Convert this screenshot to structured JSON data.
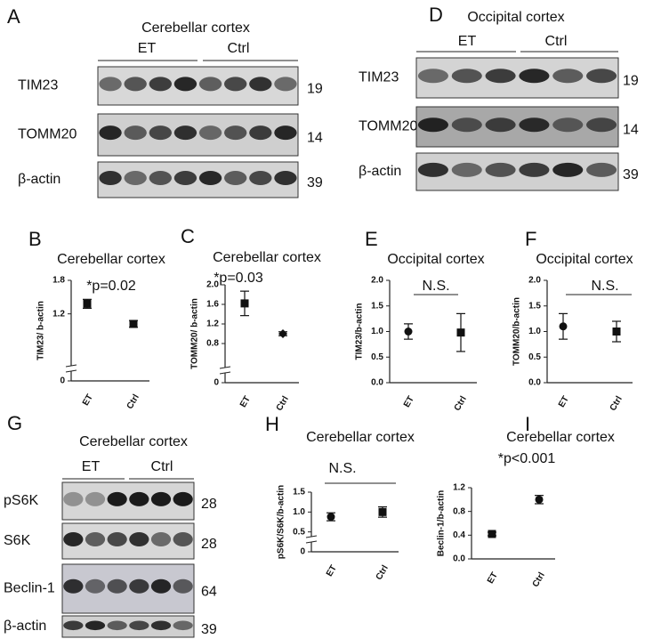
{
  "blots": [
    {
      "panel": "A",
      "title": "Cerebellar cortex",
      "groups": [
        "ET",
        "Ctrl"
      ],
      "rows": [
        {
          "name": "TIM23",
          "size": 19
        },
        {
          "name": "TOMM20",
          "size": 14
        },
        {
          "name": "β-actin",
          "size": 39
        }
      ]
    },
    {
      "panel": "D",
      "title": "Occipital cortex",
      "groups": [
        "ET",
        "Ctrl"
      ],
      "rows": [
        {
          "name": "TIM23",
          "size": 19
        },
        {
          "name": "TOMM20",
          "size": 14
        },
        {
          "name": "β-actin",
          "size": 39
        }
      ]
    },
    {
      "panel": "G",
      "title": "Cerebellar cortex",
      "groups": [
        "ET",
        "Ctrl"
      ],
      "rows": [
        {
          "name": "pS6K",
          "size": 28
        },
        {
          "name": "S6K",
          "size": 28
        },
        {
          "name": "Beclin-1",
          "size": 64
        },
        {
          "name": "β-actin",
          "size": 39
        }
      ]
    }
  ],
  "chart_data": [
    {
      "type": "dot",
      "panel": "B",
      "title": "Cerebellar cortex",
      "annotation": "*p=0.02",
      "ylabel": "TIM23/ b-actin",
      "categories": [
        "ET",
        "Ctrl"
      ],
      "values": [
        1.38,
        1.02
      ],
      "errors": [
        0.08,
        0.06
      ],
      "markers": [
        "square",
        "square"
      ],
      "ylim": [
        0,
        1.8
      ],
      "yticks": [
        0,
        1.2,
        1.8
      ],
      "axis_break": true
    },
    {
      "type": "dot",
      "panel": "C",
      "title": "Cerebellar cortex",
      "annotation": "*p=0.03",
      "ylabel": "TOMM20/ b-actin",
      "categories": [
        "ET",
        "Ctrl"
      ],
      "values": [
        1.62,
        1.0
      ],
      "errors": [
        0.25,
        0.04
      ],
      "markers": [
        "square",
        "diamond"
      ],
      "ylim": [
        0,
        2
      ],
      "yticks": [
        0,
        0.8,
        1.2,
        1.6,
        {
          "value": 2,
          "label": "2.0"
        }
      ],
      "axis_break": true
    },
    {
      "type": "dot",
      "panel": "E",
      "title": "Occipital cortex",
      "annotation": "N.S.",
      "ylabel": "TIM23/b-actin",
      "categories": [
        "ET",
        "Ctrl"
      ],
      "values": [
        1.0,
        0.98
      ],
      "errors": [
        0.15,
        0.37
      ],
      "markers": [
        "circle",
        "square"
      ],
      "ylim": [
        0,
        2
      ],
      "yticks": [
        {
          "value": 0,
          "label": "0.0"
        },
        0.5,
        {
          "value": 1,
          "label": "1.0"
        },
        1.5,
        {
          "value": 2,
          "label": "2.0"
        }
      ],
      "axis_break": false
    },
    {
      "type": "dot",
      "panel": "F",
      "title": "Occipital cortex",
      "annotation": "N.S.",
      "ylabel": "TOMM20/b-actin",
      "categories": [
        "ET",
        "Ctrl"
      ],
      "values": [
        1.1,
        1.0
      ],
      "errors": [
        0.25,
        0.2
      ],
      "markers": [
        "circle",
        "square"
      ],
      "ylim": [
        0,
        2
      ],
      "yticks": [
        {
          "value": 0,
          "label": "0.0"
        },
        0.5,
        {
          "value": 1,
          "label": "1.0"
        },
        1.5,
        {
          "value": 2,
          "label": "2.0"
        }
      ],
      "axis_break": false
    },
    {
      "type": "dot",
      "panel": "H",
      "title": "Cerebellar cortex",
      "annotation": "N.S.",
      "ylabel": "pS6K/S6K/b-actin",
      "categories": [
        "ET",
        "Ctrl"
      ],
      "values": [
        0.88,
        1.0
      ],
      "errors": [
        0.1,
        0.13
      ],
      "markers": [
        "circle",
        "square"
      ],
      "ylim": [
        0,
        1.5
      ],
      "yticks": [
        0,
        0.5,
        {
          "value": 1,
          "label": "1.0"
        },
        1.5
      ],
      "axis_break": true
    },
    {
      "type": "dot",
      "panel": "I",
      "title": "Cerebellar cortex",
      "annotation": "*p<0.001",
      "ylabel": "Beclin-1/b-actin",
      "categories": [
        "ET",
        "Ctrl"
      ],
      "values": [
        0.42,
        1.0
      ],
      "errors": [
        0.03,
        0.07
      ],
      "markers": [
        "square",
        "circle"
      ],
      "ylim": [
        0,
        1.2
      ],
      "yticks": [
        {
          "value": 0,
          "label": "0.0"
        },
        0.4,
        0.8,
        1.2
      ],
      "axis_break": false
    }
  ]
}
